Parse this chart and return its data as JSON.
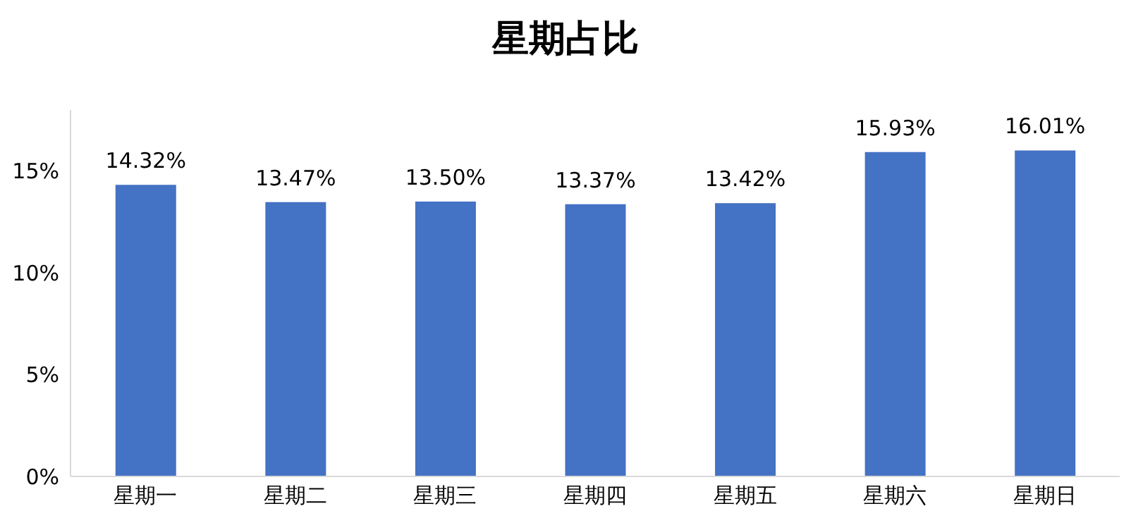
{
  "chart_data": {
    "type": "bar",
    "title": "星期占比",
    "categories": [
      "星期一",
      "星期二",
      "星期三",
      "星期四",
      "星期五",
      "星期六",
      "星期日"
    ],
    "series": [
      {
        "color": "#4472c4",
        "values": [
          14.32,
          13.47,
          13.5,
          13.37,
          13.42,
          15.93,
          16.01
        ],
        "value_labels": [
          "14.32%",
          "13.47%",
          "13.50%",
          "13.37%",
          "13.42%",
          "15.93%",
          "16.01%"
        ]
      }
    ],
    "ylim": [
      0,
      18
    ],
    "yticks": [
      {
        "value": 0,
        "label": "0%"
      },
      {
        "value": 5,
        "label": "5%"
      },
      {
        "value": 10,
        "label": "10%"
      },
      {
        "value": 15,
        "label": "15%"
      }
    ],
    "grid": false,
    "legend": false
  }
}
